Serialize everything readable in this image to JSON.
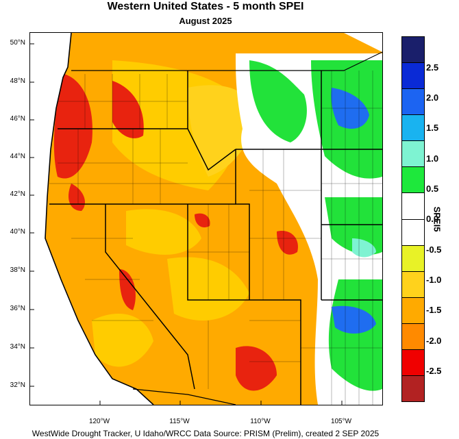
{
  "title": "Western United States - 5 month SPEI",
  "subtitle": "August 2025",
  "footer": "WestWide Drought Tracker, U Idaho/WRCC Data Source: PRISM (Prelim), created  2 SEP 2025",
  "lat_labels": [
    "50°N",
    "48°N",
    "46°N",
    "44°N",
    "42°N",
    "40°N",
    "38°N",
    "36°N",
    "34°N",
    "32°N"
  ],
  "lon_labels": [
    "120°W",
    "115°W",
    "110°W",
    "105°W"
  ],
  "legend": {
    "title": "SPEI5",
    "colors": [
      "#1a1f6b",
      "#0a2ad6",
      "#1c64f2",
      "#19b3f0",
      "#7ef3d2",
      "#1ee83c",
      "#ffffff",
      "#ffffff",
      "#e8f227",
      "#ffd21c",
      "#ffaa00",
      "#ff8a00",
      "#f00000",
      "#b22222"
    ],
    "labels": [
      "2.5",
      "2.0",
      "1.5",
      "1.0",
      "0.5",
      "0.0",
      "-0.5",
      "-1.0",
      "-1.5",
      "-2.0",
      "-2.5"
    ]
  },
  "color_key": {
    "severe": "#e8230f",
    "moderate": "#ff9c00",
    "mild": "#ffcc00",
    "slight": "#f0f000",
    "near_normal": "#ffffff",
    "wet": "#22e23a",
    "very_wet": "#1f6df0"
  }
}
